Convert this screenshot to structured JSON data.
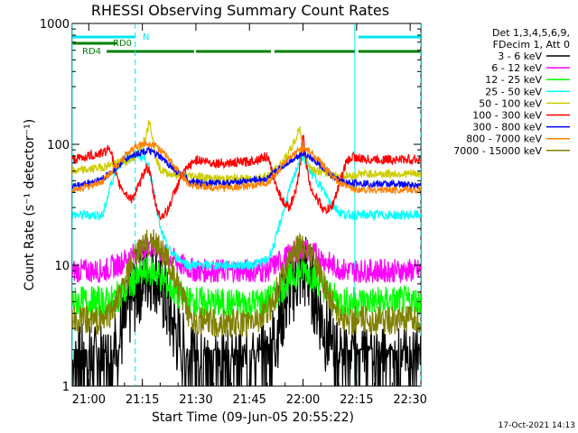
{
  "chart_data": {
    "type": "line",
    "title": "RHESSI Observing Summary Count Rates",
    "xlabel": "Start Time (09-Jun-05 20:55:22)",
    "ylabel": "Count Rate (s⁻¹ detector⁻¹)",
    "yscale": "log",
    "ylim": [
      1,
      1000
    ],
    "xlim": [
      "20:55:22",
      "22:33:00"
    ],
    "xticks": [
      "21:00",
      "21:15",
      "21:30",
      "21:45",
      "22:00",
      "22:15",
      "22:30"
    ],
    "yticks": [
      "1",
      "10",
      "100",
      "1000"
    ],
    "legend_header": [
      "Det 1,3,4,5,6,9,",
      "FDecim 1, Att 0"
    ],
    "footer_date": "17-Oct-2021 14:13",
    "flags": [
      {
        "label": "N",
        "color": "#00e5ee",
        "segments": [
          [
            "20:55:22",
            "21:13:00"
          ],
          [
            "22:15:30",
            "22:33:00"
          ]
        ]
      },
      {
        "label": "RD0",
        "color": "#008000",
        "segments": [
          [
            "20:55:22",
            "21:08:00"
          ]
        ]
      },
      {
        "label": "RD4",
        "color": "#008000",
        "segments": [
          [
            "21:05:00",
            "21:29:30"
          ],
          [
            "21:30:00",
            "21:51:00"
          ],
          [
            "21:52:00",
            "22:14:30"
          ],
          [
            "22:15:30",
            "22:33:00"
          ]
        ]
      }
    ],
    "vertical_lines": [
      {
        "time": "20:55:22",
        "style": "solid",
        "color": "#00e5ee"
      },
      {
        "time": "21:13:00",
        "style": "dashed",
        "color": "#00e5ee"
      },
      {
        "time": "22:14:30",
        "style": "solid",
        "color": "#00e5ee"
      },
      {
        "time": "22:33:00",
        "style": "dashed",
        "color": "#00e5ee"
      }
    ],
    "x": [
      "20:56",
      "21:00",
      "21:04",
      "21:06",
      "21:08",
      "21:10",
      "21:12",
      "21:14",
      "21:16",
      "21:17",
      "21:18",
      "21:19",
      "21:20",
      "21:22",
      "21:24",
      "21:26",
      "21:28",
      "21:30",
      "21:35",
      "21:40",
      "21:45",
      "21:50",
      "21:52",
      "21:54",
      "21:56",
      "21:58",
      "21:59",
      "22:00",
      "22:01",
      "22:02",
      "22:04",
      "22:06",
      "22:08",
      "22:10",
      "22:12",
      "22:14",
      "22:16",
      "22:20",
      "22:25",
      "22:30",
      "22:33"
    ],
    "series": [
      {
        "name": "3 - 6 keV",
        "color": "#000000",
        "values": [
          1.5,
          1.5,
          1.4,
          1.6,
          2.2,
          3.2,
          5,
          7,
          8.5,
          9,
          9,
          8.5,
          7,
          4.5,
          3,
          2,
          1.5,
          1.4,
          1.3,
          1.3,
          1.3,
          1.5,
          2.5,
          4,
          6,
          8,
          8.5,
          9,
          8.5,
          7.5,
          5,
          3,
          2,
          1.5,
          1.5,
          1.4,
          1.5,
          1.4,
          1.4,
          1.4,
          1.4
        ]
      },
      {
        "name": "6 - 12 keV",
        "color": "#ff00ff",
        "values": [
          9,
          9,
          9,
          9.5,
          10,
          11,
          12,
          13,
          14,
          14,
          14,
          14,
          13,
          12,
          11,
          10,
          9.5,
          9,
          9,
          9,
          9,
          9,
          10,
          11,
          12,
          13,
          13.5,
          14,
          13.5,
          13,
          12,
          11,
          10,
          9.5,
          9,
          9,
          9,
          9,
          9,
          9,
          9
        ]
      },
      {
        "name": "12 - 25 keV",
        "color": "#00ff00",
        "values": [
          5,
          5,
          5,
          5,
          5.5,
          6,
          7,
          8,
          9,
          9,
          9,
          8.5,
          8,
          7,
          6,
          5.5,
          5,
          5,
          4.8,
          4.8,
          4.8,
          5,
          5.5,
          6.5,
          7.5,
          8.5,
          9,
          9,
          9,
          8.5,
          7.5,
          6.5,
          5.5,
          5,
          5,
          5,
          5,
          5,
          5,
          5,
          5
        ]
      },
      {
        "name": "25 - 50 keV",
        "color": "#00ffff",
        "values": [
          26,
          26,
          26,
          45,
          65,
          75,
          80,
          82,
          75,
          60,
          45,
          30,
          20,
          14,
          12,
          11,
          10,
          10,
          10,
          10,
          10,
          11,
          15,
          25,
          40,
          60,
          75,
          80,
          70,
          60,
          50,
          40,
          32,
          28,
          26,
          26,
          26,
          26,
          26,
          26,
          26
        ]
      },
      {
        "name": "50 - 100 keV",
        "color": "#cccc00",
        "values": [
          60,
          62,
          65,
          68,
          70,
          72,
          75,
          85,
          120,
          160,
          110,
          75,
          62,
          58,
          56,
          55,
          55,
          55,
          52,
          52,
          52,
          55,
          60,
          70,
          85,
          110,
          140,
          95,
          75,
          65,
          60,
          58,
          56,
          55,
          55,
          55,
          57,
          57,
          57,
          57,
          57
        ]
      },
      {
        "name": "100 - 300 keV",
        "color": "#ff0000",
        "values": [
          75,
          80,
          85,
          95,
          50,
          40,
          35,
          45,
          65,
          60,
          40,
          30,
          25,
          28,
          40,
          55,
          65,
          75,
          70,
          70,
          72,
          80,
          50,
          35,
          30,
          40,
          60,
          120,
          65,
          45,
          35,
          28,
          30,
          45,
          70,
          80,
          75,
          75,
          75,
          75,
          75
        ]
      },
      {
        "name": "300 - 800 keV",
        "color": "#0000ff",
        "values": [
          45,
          48,
          52,
          58,
          65,
          75,
          80,
          85,
          88,
          88,
          85,
          82,
          78,
          70,
          62,
          55,
          50,
          48,
          48,
          48,
          50,
          52,
          58,
          65,
          72,
          78,
          82,
          85,
          82,
          78,
          70,
          62,
          55,
          50,
          48,
          48,
          48,
          47,
          47,
          46,
          46
        ]
      },
      {
        "name": "800 - 7000 keV",
        "color": "#ff8000",
        "values": [
          42,
          45,
          50,
          58,
          68,
          80,
          90,
          98,
          102,
          102,
          100,
          96,
          90,
          78,
          66,
          55,
          48,
          45,
          44,
          44,
          45,
          48,
          55,
          65,
          75,
          85,
          90,
          92,
          90,
          86,
          76,
          65,
          55,
          48,
          45,
          43,
          42,
          42,
          42,
          42,
          42
        ]
      },
      {
        "name": "7000 - 15000 keV",
        "color": "#808000",
        "values": [
          3.5,
          3.5,
          3.5,
          4,
          5,
          7,
          10,
          13,
          15,
          15.5,
          15.5,
          15,
          14,
          11,
          8,
          5.5,
          4,
          3.5,
          3.3,
          3.3,
          3.3,
          4,
          5.5,
          8,
          11,
          13,
          14,
          14,
          13.5,
          13,
          10,
          7,
          5,
          4,
          3.5,
          3.5,
          3.5,
          3.5,
          3.5,
          3.5,
          3.5
        ]
      }
    ]
  }
}
